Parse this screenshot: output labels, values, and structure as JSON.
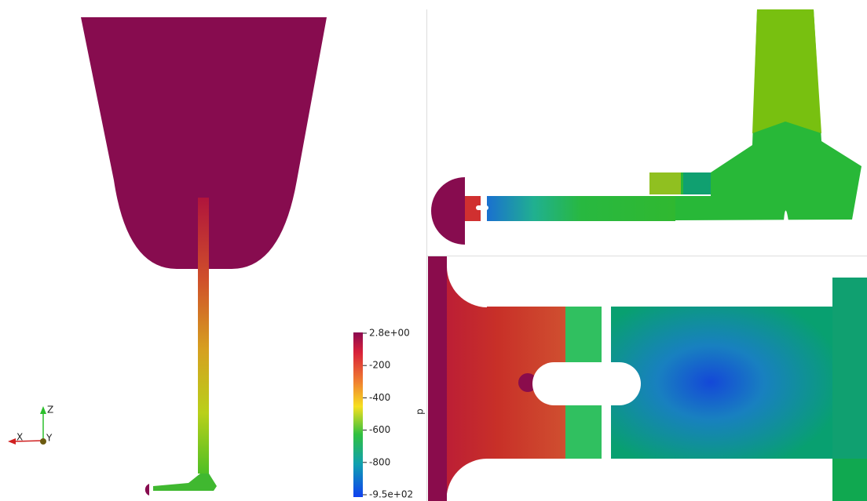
{
  "colorbar": {
    "title": "p",
    "labels": [
      "2.8e+00",
      "-200",
      "-400",
      "-600",
      "-800",
      "-9.5e+02"
    ]
  },
  "axes": {
    "z": "Z",
    "x": "X",
    "y": "Y"
  }
}
